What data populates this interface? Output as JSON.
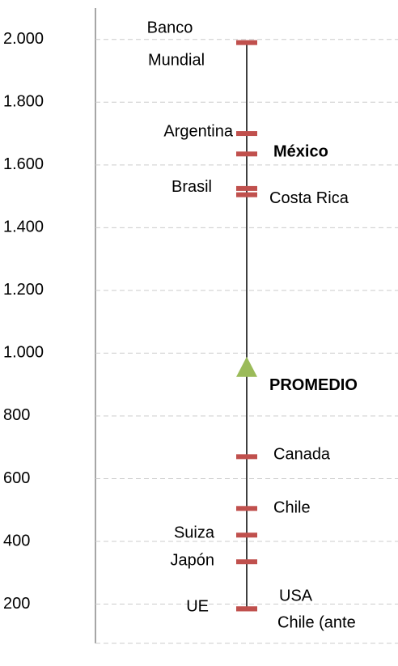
{
  "chart_data": {
    "type": "dot",
    "categories": [
      "Banco Mundial",
      "Argentina",
      "México",
      "Brasil",
      "Costa Rica",
      "PROMEDIO",
      "Canada",
      "Chile",
      "Suiza",
      "Japón",
      "UE",
      "USA"
    ],
    "values": [
      1990,
      1700,
      1635,
      1525,
      1505,
      950,
      670,
      505,
      420,
      335,
      185,
      185
    ],
    "color": "#c0504d",
    "average_color": "#9bbb59",
    "ylim": [
      75,
      2100
    ],
    "yticks": [
      200,
      400,
      600,
      800,
      {
        "value": 1000,
        "label": "1.000"
      },
      {
        "value": 1200,
        "label": "1.200"
      },
      {
        "value": 1400,
        "label": "1.400"
      },
      {
        "value": 1600,
        "label": "1.600"
      },
      {
        "value": 1800,
        "label": "1.800"
      },
      {
        "value": 2000,
        "label": "2.000"
      }
    ],
    "grid": true,
    "annotation": {
      "text": "Chile (ante",
      "color": "#ff0000"
    }
  }
}
